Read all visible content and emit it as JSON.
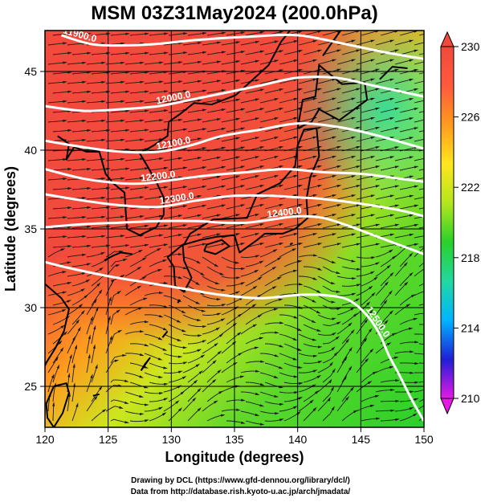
{
  "chart_data": {
    "type": "heatmap",
    "title": "MSM 03Z31May2024 (200.0hPa)",
    "xlabel": "Longitude (degrees)",
    "ylabel": "Latitude  (degrees)",
    "xlim": [
      120,
      150
    ],
    "ylim": [
      22.4,
      47.6
    ],
    "x_ticks": [
      "120",
      "125",
      "130",
      "135",
      "140",
      "145",
      "150"
    ],
    "y_ticks": [
      "25",
      "30",
      "35",
      "40",
      "45"
    ],
    "x_tick_values": [
      120,
      125,
      130,
      135,
      140,
      145,
      150
    ],
    "y_tick_values": [
      25,
      30,
      35,
      40,
      45
    ],
    "grid": true,
    "colorbar": {
      "min": 210,
      "max": 230,
      "ticks": [
        "210",
        "214",
        "218",
        "222",
        "226",
        "230"
      ],
      "tick_values": [
        210,
        214,
        218,
        222,
        226,
        230
      ],
      "colors": [
        "#e619e6",
        "#1f1fd6",
        "#00b4ff",
        "#22d8a0",
        "#2ad02a",
        "#b4e61e",
        "#ffe61e",
        "#ff9b1e",
        "#ff5a3c",
        "#f04a3c"
      ],
      "placement": "right"
    },
    "contours": [
      {
        "label": "11900.0",
        "points": [
          [
            121.3,
            47.3
          ],
          [
            124,
            46.7
          ],
          [
            128,
            46.7
          ],
          [
            132,
            47.0
          ],
          [
            136,
            47.2
          ],
          [
            140,
            47.3
          ],
          [
            144,
            46.7
          ],
          [
            147,
            46.2
          ],
          [
            150,
            45.8
          ]
        ]
      },
      {
        "label": "12000.0",
        "points": [
          [
            120,
            42.8
          ],
          [
            123,
            42.5
          ],
          [
            126,
            42.6
          ],
          [
            129,
            42.8
          ],
          [
            131.5,
            43.2
          ],
          [
            134,
            43.6
          ],
          [
            137,
            44.1
          ],
          [
            140,
            44.6
          ],
          [
            143,
            44.6
          ],
          [
            146,
            44.1
          ],
          [
            150,
            43.4
          ]
        ]
      },
      {
        "label": "12100.0",
        "points": [
          [
            120,
            40.6
          ],
          [
            123,
            40.2
          ],
          [
            126,
            39.9
          ],
          [
            129,
            39.9
          ],
          [
            131.5,
            40.3
          ],
          [
            134,
            40.9
          ],
          [
            137,
            41.3
          ],
          [
            140,
            41.7
          ],
          [
            143,
            41.5
          ],
          [
            146,
            41.0
          ],
          [
            150,
            40.1
          ]
        ]
      },
      {
        "label": "12200.0",
        "points": [
          [
            120,
            38.8
          ],
          [
            123,
            38.2
          ],
          [
            126,
            37.9
          ],
          [
            128,
            37.9
          ],
          [
            130,
            38.1
          ],
          [
            133,
            38.4
          ],
          [
            136,
            38.6
          ],
          [
            139,
            38.8
          ],
          [
            142,
            38.6
          ],
          [
            145,
            38.5
          ],
          [
            148,
            38.2
          ],
          [
            150,
            38.0
          ]
        ]
      },
      {
        "label": "12300.0",
        "points": [
          [
            120,
            37.2
          ],
          [
            123,
            36.8
          ],
          [
            126,
            36.5
          ],
          [
            129,
            36.4
          ],
          [
            132,
            36.8
          ],
          [
            135,
            37.1
          ],
          [
            138,
            37.1
          ],
          [
            140,
            37.0
          ],
          [
            142,
            36.9
          ],
          [
            145,
            36.6
          ],
          [
            148,
            36.2
          ],
          [
            150,
            35.8
          ]
        ]
      },
      {
        "label": "12400.0",
        "points": [
          [
            120,
            35.1
          ],
          [
            123,
            35.3
          ],
          [
            126,
            35.4
          ],
          [
            129,
            35.5
          ],
          [
            132,
            35.5
          ],
          [
            134,
            35.4
          ],
          [
            136,
            35.4
          ],
          [
            138,
            35.6
          ],
          [
            140,
            35.8
          ],
          [
            142,
            35.7
          ],
          [
            144,
            35.2
          ],
          [
            146,
            34.6
          ],
          [
            148,
            34.0
          ],
          [
            150,
            33.4
          ]
        ]
      },
      {
        "label": "12500.0",
        "points": [
          [
            120,
            32.9
          ],
          [
            122,
            32.5
          ],
          [
            125,
            32.0
          ],
          [
            128,
            31.6
          ],
          [
            131,
            31.2
          ],
          [
            134,
            30.8
          ],
          [
            137,
            30.6
          ],
          [
            140,
            30.8
          ],
          [
            142,
            30.8
          ],
          [
            144,
            30.5
          ],
          [
            145.5,
            29.5
          ],
          [
            146.5,
            28.3
          ],
          [
            147.2,
            27.0
          ],
          [
            148,
            25.8
          ],
          [
            149,
            24.2
          ],
          [
            150,
            22.8
          ]
        ]
      }
    ]
  },
  "credits": {
    "line1": "Drawing by DCL (https://www.gfd-dennou.org/library/dcl/)",
    "line2": "Data from http://database.rish.kyoto-u.ac.jp/arch/jmadata/"
  }
}
